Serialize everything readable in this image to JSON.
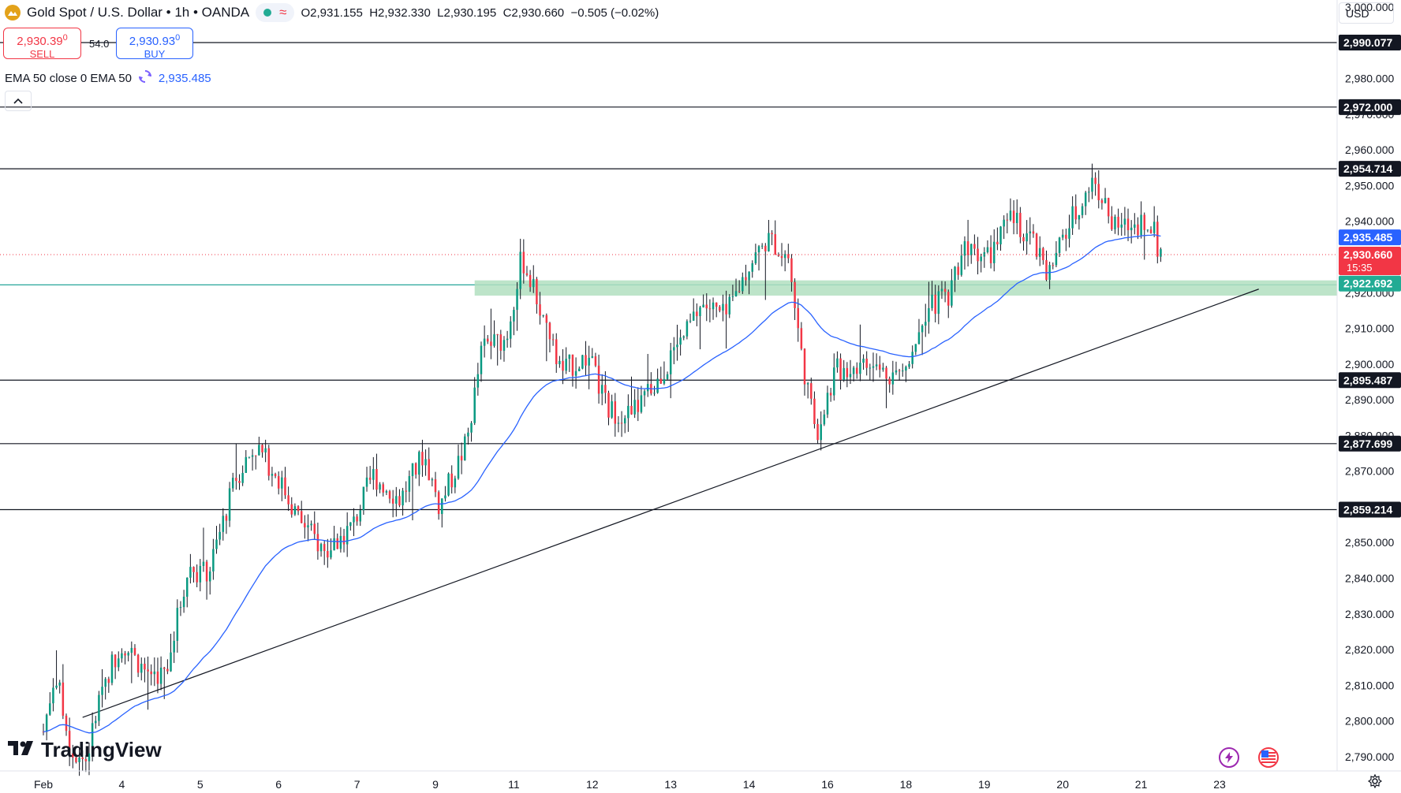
{
  "header": {
    "symbol_title": "Gold Spot / U.S. Dollar • 1h • OANDA",
    "wave_glyph": "≈",
    "open": "O2,931.155",
    "high": "H2,932.330",
    "low": "L2,930.195",
    "close": "C2,930.660",
    "change": "−0.505 (−0.02%)"
  },
  "trade": {
    "sell_price": "2,930.39",
    "sell_sup": "0",
    "sell_label": "SELL",
    "spread": "54.0",
    "buy_price": "2,930.93",
    "buy_sup": "0",
    "buy_label": "BUY"
  },
  "indicator": {
    "label": "EMA 50 close 0 EMA 50",
    "value": "2,935.485"
  },
  "currency": "USD",
  "brand": "TradingView",
  "colors": {
    "up": "#089981",
    "down": "#f23645",
    "ema": "#2962ff",
    "zone": "#b2dfc0",
    "last_price": "#f23645"
  },
  "chart_data": {
    "type": "candlestick",
    "y_range": [
      2786,
      3002
    ],
    "y_ticks": [
      "2,790.000",
      "2,800.000",
      "2,810.000",
      "2,820.000",
      "2,830.000",
      "2,840.000",
      "2,850.000",
      "2,860.000",
      "2,870.000",
      "2,880.000",
      "2,890.000",
      "2,900.000",
      "2,910.000",
      "2,920.000",
      "2,930.000",
      "2,940.000",
      "2,950.000",
      "2,960.000",
      "2,970.000",
      "2,980.000",
      "3,000.000"
    ],
    "x_labels": [
      {
        "label": "Feb",
        "day": 0
      },
      {
        "label": "4",
        "day": 1
      },
      {
        "label": "5",
        "day": 2
      },
      {
        "label": "6",
        "day": 3
      },
      {
        "label": "7",
        "day": 4
      },
      {
        "label": "9",
        "day": 5
      },
      {
        "label": "11",
        "day": 6
      },
      {
        "label": "12",
        "day": 7
      },
      {
        "label": "13",
        "day": 8
      },
      {
        "label": "14",
        "day": 9
      },
      {
        "label": "16",
        "day": 10
      },
      {
        "label": "18",
        "day": 11
      },
      {
        "label": "19",
        "day": 12
      },
      {
        "label": "20",
        "day": 13
      },
      {
        "label": "21",
        "day": 14
      },
      {
        "label": "23",
        "day": 15
      }
    ],
    "horizontal_levels": [
      {
        "value": 2990.077,
        "label": "2,990.077"
      },
      {
        "value": 2972.0,
        "label": "2,972.000"
      },
      {
        "value": 2954.714,
        "label": "2,954.714"
      },
      {
        "value": 2895.487,
        "label": "2,895.487"
      },
      {
        "value": 2877.699,
        "label": "2,877.699"
      },
      {
        "value": 2859.214,
        "label": "2,859.214"
      }
    ],
    "support_zone": {
      "from": 2920.5,
      "to": 2923.0,
      "label": "2,922.692",
      "start_day": 5.5
    },
    "trendline": {
      "from": {
        "day": 0.5,
        "value": 2801
      },
      "to": {
        "day": 15.5,
        "value": 2921
      }
    },
    "ema_label": "2,935.485",
    "ema_value": 2935.485,
    "last_price": {
      "value": 2930.66,
      "label": "2,930.660",
      "countdown": "15:35"
    },
    "waypoints": [
      {
        "day": 0,
        "value": 2797
      },
      {
        "day": 0.15,
        "value": 2814
      },
      {
        "day": 0.35,
        "value": 2792
      },
      {
        "day": 0.55,
        "value": 2789
      },
      {
        "day": 0.75,
        "value": 2810
      },
      {
        "day": 1.0,
        "value": 2822
      },
      {
        "day": 1.3,
        "value": 2814
      },
      {
        "day": 1.55,
        "value": 2813
      },
      {
        "day": 1.85,
        "value": 2843
      },
      {
        "day": 2.1,
        "value": 2841
      },
      {
        "day": 2.45,
        "value": 2868
      },
      {
        "day": 2.7,
        "value": 2877
      },
      {
        "day": 2.95,
        "value": 2870
      },
      {
        "day": 3.25,
        "value": 2857
      },
      {
        "day": 3.6,
        "value": 2847
      },
      {
        "day": 3.95,
        "value": 2855
      },
      {
        "day": 4.2,
        "value": 2869
      },
      {
        "day": 4.55,
        "value": 2862
      },
      {
        "day": 4.85,
        "value": 2875
      },
      {
        "day": 5.05,
        "value": 2860
      },
      {
        "day": 5.4,
        "value": 2878
      },
      {
        "day": 5.6,
        "value": 2905
      },
      {
        "day": 5.9,
        "value": 2907
      },
      {
        "day": 6.1,
        "value": 2930
      },
      {
        "day": 6.3,
        "value": 2918
      },
      {
        "day": 6.6,
        "value": 2898
      },
      {
        "day": 6.95,
        "value": 2902
      },
      {
        "day": 7.2,
        "value": 2887
      },
      {
        "day": 7.5,
        "value": 2886
      },
      {
        "day": 7.8,
        "value": 2894
      },
      {
        "day": 8.1,
        "value": 2905
      },
      {
        "day": 8.4,
        "value": 2917
      },
      {
        "day": 8.7,
        "value": 2913
      },
      {
        "day": 9.0,
        "value": 2928
      },
      {
        "day": 9.25,
        "value": 2935
      },
      {
        "day": 9.5,
        "value": 2930
      },
      {
        "day": 9.65,
        "value": 2905
      },
      {
        "day": 9.85,
        "value": 2880
      },
      {
        "day": 10.1,
        "value": 2898
      },
      {
        "day": 10.4,
        "value": 2900
      },
      {
        "day": 10.7,
        "value": 2898
      },
      {
        "day": 10.95,
        "value": 2897
      },
      {
        "day": 11.25,
        "value": 2915
      },
      {
        "day": 11.55,
        "value": 2920
      },
      {
        "day": 11.75,
        "value": 2934
      },
      {
        "day": 12.05,
        "value": 2930
      },
      {
        "day": 12.35,
        "value": 2941
      },
      {
        "day": 12.6,
        "value": 2935
      },
      {
        "day": 12.8,
        "value": 2924
      },
      {
        "day": 13.1,
        "value": 2940
      },
      {
        "day": 13.4,
        "value": 2952
      },
      {
        "day": 13.65,
        "value": 2938
      },
      {
        "day": 13.9,
        "value": 2939
      },
      {
        "day": 14.1,
        "value": 2941
      },
      {
        "day": 14.25,
        "value": 2930.66
      }
    ]
  }
}
